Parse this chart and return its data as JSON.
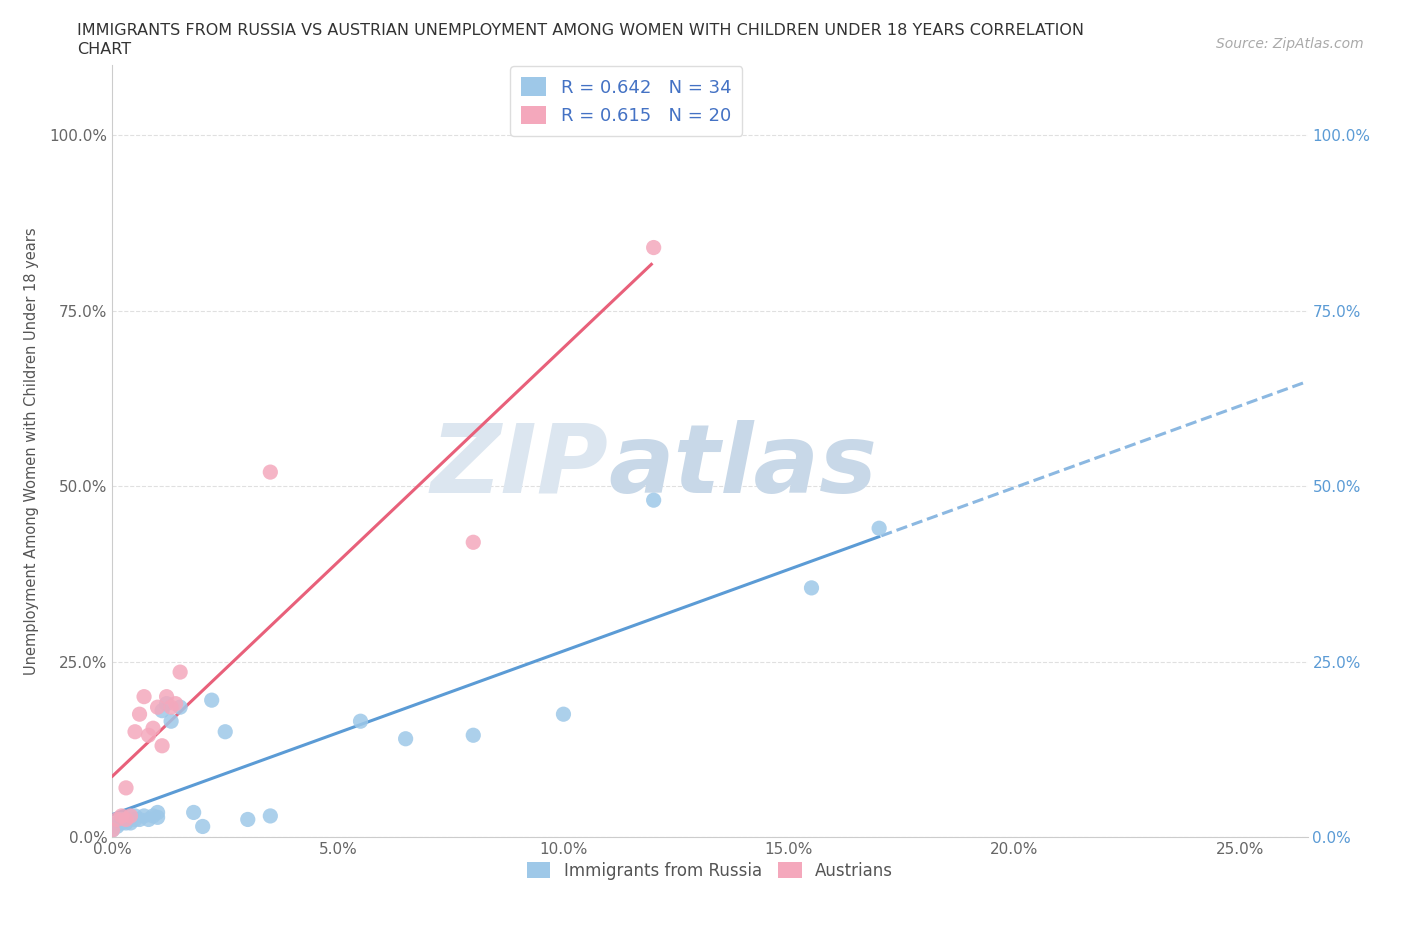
{
  "title_line1": "IMMIGRANTS FROM RUSSIA VS AUSTRIAN UNEMPLOYMENT AMONG WOMEN WITH CHILDREN UNDER 18 YEARS CORRELATION",
  "title_line2": "CHART",
  "source": "Source: ZipAtlas.com",
  "ylabel": "Unemployment Among Women with Children Under 18 years",
  "background_color": "#ffffff",
  "watermark_zip": "ZIP",
  "watermark_atlas": "atlas",
  "watermark_color_zip": "#dce6f0",
  "watermark_color_atlas": "#c8d8e8",
  "R_russia": 0.642,
  "N_russia": 34,
  "R_austria": 0.615,
  "N_austria": 20,
  "color_russia": "#9ec8e8",
  "color_austria": "#f4a8bc",
  "line_color_russia": "#5b9bd5",
  "line_color_austria": "#e8607a",
  "legend_label_russia": "Immigrants from Russia",
  "legend_label_austria": "Austrians",
  "russia_x": [
    0.0,
    0.001,
    0.001,
    0.002,
    0.002,
    0.003,
    0.003,
    0.004,
    0.004,
    0.005,
    0.005,
    0.006,
    0.007,
    0.008,
    0.009,
    0.01,
    0.01,
    0.011,
    0.012,
    0.013,
    0.015,
    0.018,
    0.02,
    0.022,
    0.025,
    0.03,
    0.035,
    0.055,
    0.065,
    0.08,
    0.1,
    0.12,
    0.155,
    0.17
  ],
  "russia_y": [
    0.01,
    0.015,
    0.02,
    0.02,
    0.025,
    0.02,
    0.025,
    0.02,
    0.028,
    0.025,
    0.03,
    0.025,
    0.03,
    0.025,
    0.03,
    0.028,
    0.035,
    0.18,
    0.19,
    0.165,
    0.185,
    0.035,
    0.015,
    0.195,
    0.15,
    0.025,
    0.03,
    0.165,
    0.14,
    0.145,
    0.175,
    0.48,
    0.355,
    0.44
  ],
  "austria_x": [
    0.0,
    0.001,
    0.002,
    0.003,
    0.003,
    0.004,
    0.005,
    0.006,
    0.007,
    0.008,
    0.009,
    0.01,
    0.011,
    0.012,
    0.013,
    0.014,
    0.015,
    0.035,
    0.08,
    0.12
  ],
  "austria_y": [
    0.01,
    0.025,
    0.03,
    0.025,
    0.07,
    0.03,
    0.15,
    0.175,
    0.2,
    0.145,
    0.155,
    0.185,
    0.13,
    0.2,
    0.185,
    0.19,
    0.235,
    0.52,
    0.42,
    0.84
  ],
  "xlim": [
    0.0,
    0.265
  ],
  "ylim": [
    0.0,
    1.1
  ],
  "yticks": [
    0.0,
    0.25,
    0.5,
    0.75,
    1.0
  ],
  "xticks": [
    0.0,
    0.05,
    0.1,
    0.15,
    0.2,
    0.25
  ]
}
